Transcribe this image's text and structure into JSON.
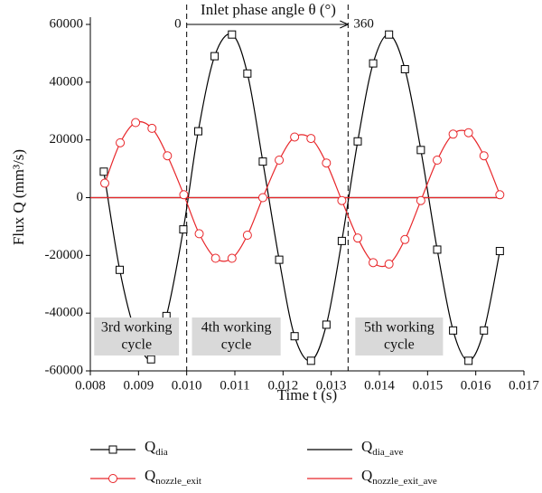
{
  "chart_data": {
    "type": "line",
    "xlabel": "Time t (s)",
    "ylabel": "Flux Q (mm³/s)",
    "xlim": [
      0.008,
      0.017
    ],
    "ylim": [
      -60000,
      60000
    ],
    "xticks": [
      0.008,
      0.009,
      {
        "value": 0.01,
        "label": "0.010"
      },
      0.011,
      0.012,
      0.013,
      0.014,
      0.015,
      0.016,
      0.017
    ],
    "yticks": [
      -60000,
      -40000,
      -20000,
      0,
      20000,
      40000,
      60000
    ],
    "series": [
      {
        "name": "Q_dia",
        "color": "#000000",
        "marker": "square",
        "x": [
          0.00828,
          0.00861,
          0.00894,
          0.00926,
          0.00958,
          0.00993,
          0.01024,
          0.01058,
          0.01094,
          0.01126,
          0.01158,
          0.01192,
          0.01224,
          0.01258,
          0.0129,
          0.01322,
          0.01355,
          0.01387,
          0.0142,
          0.01453,
          0.01486,
          0.0152,
          0.01553,
          0.01585,
          0.01617,
          0.0165
        ],
        "values": [
          9000,
          -25000,
          -47000,
          -56000,
          -41000,
          -11000,
          23000,
          49000,
          56500,
          43000,
          12500,
          -21500,
          -48000,
          -56500,
          -44000,
          -15000,
          19500,
          46500,
          56500,
          44500,
          16500,
          -18000,
          -46000,
          -56500,
          -46000,
          -18500
        ]
      },
      {
        "name": "Q_dia_ave",
        "color": "#000000",
        "marker": "none",
        "x": [
          0.008,
          0.0165
        ],
        "values": [
          0,
          0
        ]
      },
      {
        "name": "Q_nozzle_exit",
        "color": "#e8262a",
        "marker": "circle",
        "x": [
          0.0083,
          0.00862,
          0.00894,
          0.00928,
          0.0096,
          0.00994,
          0.01026,
          0.0106,
          0.01094,
          0.01126,
          0.01158,
          0.01192,
          0.01224,
          0.01258,
          0.0129,
          0.01322,
          0.01355,
          0.01387,
          0.0142,
          0.01453,
          0.01486,
          0.0152,
          0.01553,
          0.01585,
          0.01617,
          0.0165
        ],
        "values": [
          5000,
          19000,
          26000,
          24000,
          14500,
          1000,
          -12500,
          -21000,
          -21000,
          -13000,
          0,
          13000,
          21000,
          20500,
          12000,
          -1000,
          -14000,
          -22500,
          -23000,
          -14500,
          -1000,
          13000,
          22000,
          22500,
          14500,
          1000
        ]
      },
      {
        "name": "Q_nozzle_exit_ave",
        "color": "#e8262a",
        "marker": "none",
        "x": [
          0.008,
          0.0165
        ],
        "values": [
          0,
          0
        ]
      }
    ],
    "phase_label": "Inlet phase angle θ (°)",
    "phase_lines": [
      {
        "value": 0.01,
        "label": "0"
      },
      {
        "value": 0.01335,
        "label": "360"
      }
    ],
    "regions": [
      {
        "lines": [
          "3rd working",
          "cycle"
        ],
        "xrange": [
          0.00808,
          0.00984
        ]
      },
      {
        "lines": [
          "4th working",
          "cycle"
        ],
        "xrange": [
          0.01011,
          0.01195
        ]
      },
      {
        "lines": [
          "5th working",
          "cycle"
        ],
        "xrange": [
          0.0135,
          0.01532
        ]
      }
    ]
  }
}
